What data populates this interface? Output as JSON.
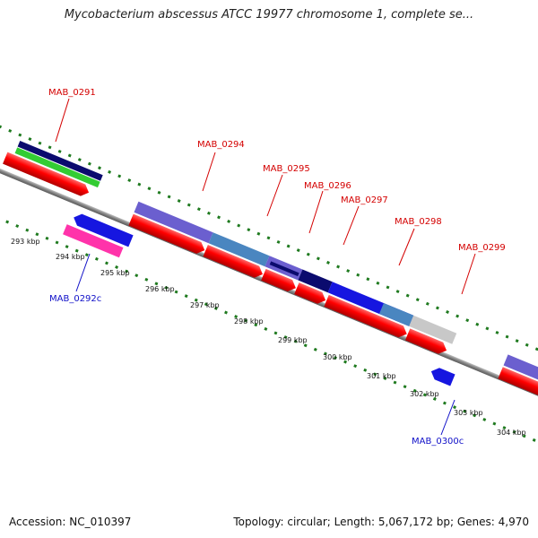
{
  "title": "Mycobacterium abscessus ATCC 19977 chromosome 1, complete se...",
  "footer": {
    "accession": "Accession: NC_010397",
    "summary": "Topology: circular; Length: 5,067,172 bp; Genes: 4,970"
  },
  "genes_top": [
    "MAB_0291",
    "MAB_0294",
    "MAB_0295",
    "MAB_0296",
    "MAB_0297",
    "MAB_0298",
    "MAB_0299"
  ],
  "genes_bottom": [
    "MAB_0292c",
    "MAB_0300c"
  ],
  "kbp_ticks": [
    "293 kbp",
    "294 kbp",
    "295 kbp",
    "296 kbp",
    "297 kbp",
    "298 kbp",
    "299 kbp",
    "300 kbp",
    "301 kbp",
    "302 kbp",
    "303 kbp",
    "304 kbp"
  ],
  "colors": {
    "cds": "#ff0000",
    "gene_purple": "#6b5fcf",
    "gene_steel": "#4a86c0",
    "gene_navy": "#0b0b6e",
    "gene_blue": "#1616e0",
    "gene_grey": "#c8c8c8",
    "gene_green": "#33cc33",
    "gene_pink": "#ff33aa",
    "backbone": "#8c8c8c",
    "tick_green": "#1f7a1f",
    "label_red": "#d40000",
    "label_blue": "#1010c8"
  }
}
